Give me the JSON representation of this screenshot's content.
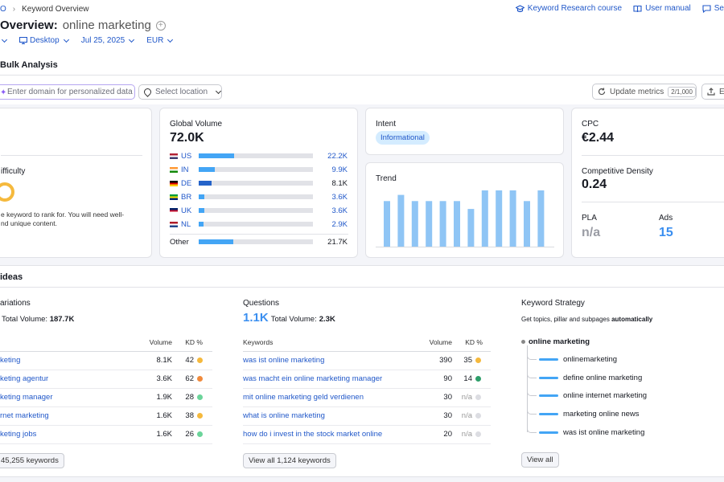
{
  "breadcrumb": {
    "root": "O",
    "current": "Keyword Overview"
  },
  "top_links": [
    {
      "label": "Keyword Research course",
      "icon": "graduation-cap-icon"
    },
    {
      "label": "User manual",
      "icon": "book-icon"
    },
    {
      "label": "Se",
      "icon": "chat-icon"
    }
  ],
  "title": {
    "prefix": "Overview:",
    "keyword": "online marketing"
  },
  "filters": {
    "device": "Desktop",
    "date": "Jul 25, 2025",
    "currency": "EUR"
  },
  "bulk_label": "Bulk Analysis",
  "toolbar": {
    "domain_placeholder": "Enter domain for personalized data",
    "location_placeholder": "Select location",
    "update_label": "Update metrics",
    "update_badge": "2/1,000",
    "export_label": "Ex"
  },
  "difficulty": {
    "label": "ifficulty",
    "description_line1": "e keyword to rank for. You will need well-",
    "description_line2": "nd unique content."
  },
  "global_volume": {
    "label": "Global Volume",
    "value": "72.0K",
    "rows": [
      {
        "country": "US",
        "value": "22.2K",
        "fill": 0.31,
        "flag": "us"
      },
      {
        "country": "IN",
        "value": "9.9K",
        "fill": 0.14,
        "flag": "in"
      },
      {
        "country": "DE",
        "value": "8.1K",
        "fill": 0.11,
        "flag": "de"
      },
      {
        "country": "BR",
        "value": "3.6K",
        "fill": 0.05,
        "flag": "br"
      },
      {
        "country": "UK",
        "value": "3.6K",
        "fill": 0.05,
        "flag": "uk"
      },
      {
        "country": "NL",
        "value": "2.9K",
        "fill": 0.04,
        "flag": "nl"
      }
    ],
    "other": {
      "label": "Other",
      "value": "21.7K",
      "fill": 0.3
    }
  },
  "intent": {
    "label": "Intent",
    "value": "Informational"
  },
  "trend": {
    "label": "Trend",
    "values": [
      0.81,
      0.92,
      0.81,
      0.81,
      0.81,
      0.81,
      0.67,
      1.0,
      1.0,
      1.0,
      0.81,
      1.0
    ]
  },
  "cpc": {
    "label": "CPC",
    "value": "€2.44"
  },
  "competitive_density": {
    "label": "Competitive Density",
    "value": "0.24"
  },
  "pla": {
    "label": "PLA",
    "value": "n/a"
  },
  "ads": {
    "label": "Ads",
    "value": "15"
  },
  "ideas": {
    "title": "ideas",
    "variations": {
      "title": "ariations",
      "total_label": "Total Volume:",
      "total_value": "187.7K",
      "col_volume": "Volume",
      "col_kd": "KD %",
      "rows": [
        {
          "keyword": "keting",
          "volume": "8.1K",
          "kd": "42",
          "color": "#f5b93d"
        },
        {
          "keyword": "keting agentur",
          "volume": "3.6K",
          "kd": "62",
          "color": "#f08a3c"
        },
        {
          "keyword": "keting manager",
          "volume": "1.9K",
          "kd": "28",
          "color": "#6bd49a"
        },
        {
          "keyword": "rnet marketing",
          "volume": "1.6K",
          "kd": "38",
          "color": "#f5b93d"
        },
        {
          "keyword": "keting jobs",
          "volume": "1.6K",
          "kd": "26",
          "color": "#6bd49a"
        }
      ],
      "view_all": "45,255 keywords"
    },
    "questions": {
      "title": "Questions",
      "count": "1.1K",
      "total_label": "Total Volume:",
      "total_value": "2.3K",
      "col_keywords": "Keywords",
      "col_volume": "Volume",
      "col_kd": "KD %",
      "rows": [
        {
          "keyword": "was ist online marketing",
          "volume": "390",
          "kd": "35",
          "color": "#f5b93d"
        },
        {
          "keyword": "was macht ein online marketing manager",
          "volume": "90",
          "kd": "14",
          "color": "#2e9e6a"
        },
        {
          "keyword": "mit online marketing geld verdienen",
          "volume": "30",
          "kd": "n/a",
          "color": "#dcdde2"
        },
        {
          "keyword": "what is online marketing",
          "volume": "30",
          "kd": "n/a",
          "color": "#dcdde2"
        },
        {
          "keyword": "how do i invest in the stock market online",
          "volume": "20",
          "kd": "n/a",
          "color": "#dcdde2"
        }
      ],
      "view_all": "View all 1,124 keywords"
    },
    "strategy": {
      "title": "Keyword Strategy",
      "desc_prefix": "Get topics, pillar and subpages",
      "desc_bold": "automatically",
      "root": "online marketing",
      "children": [
        "onlinemarketing",
        "define online marketing",
        "online internet marketing",
        "marketing online news",
        "was ist online marketing"
      ],
      "view_all": "View all"
    }
  }
}
